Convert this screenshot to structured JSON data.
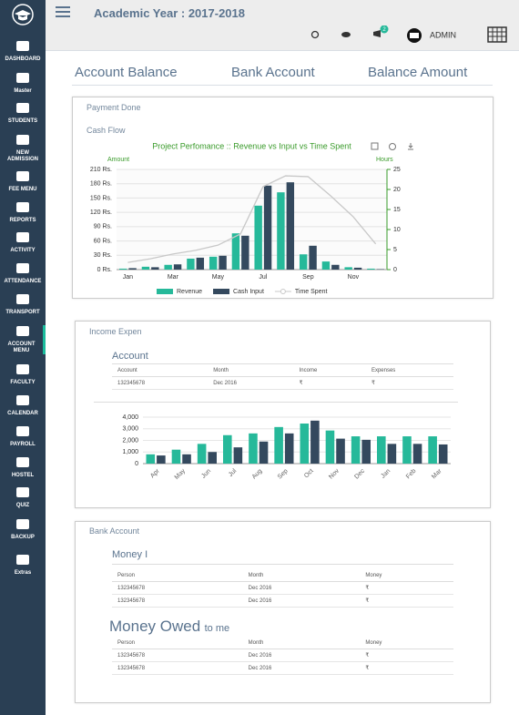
{
  "header": {
    "academic_year": "Academic Year :  2017-2018",
    "notification_count": 2,
    "user": "ADMIN"
  },
  "sidebar": [
    "DASHBOARD",
    "Master",
    "STUDENTS",
    "NEW ADMISSION",
    "FEE MENU",
    "REPORTS",
    "ACTIVITY",
    "ATTENDANCE",
    "TRANSPORT",
    "ACCOUNT MENU",
    "FACULTY",
    "CALENDAR",
    "PAYROLL",
    "HOSTEL",
    "QUIZ",
    "BACKUP",
    "Extras"
  ],
  "tabs": [
    "Account Balance",
    "Bank Account",
    "Balance Amount"
  ],
  "payment_panel": {
    "title": "Payment Done",
    "subtitle": "Cash Flow",
    "chart": {
      "type": "bar",
      "title": "Project Perfomance :: Revenue vs Input vs Time Spent",
      "y_title": "Amount",
      "y2_title": "Hours",
      "categories": [
        "Jan",
        null,
        "Mar",
        null,
        "May",
        null,
        "Jul",
        null,
        "Sep",
        null,
        "Nov",
        null
      ],
      "series": [
        {
          "name": "Revenue",
          "color": "#26b99a",
          "values": [
            2,
            6,
            10,
            23,
            27,
            76,
            134,
            162,
            32,
            17,
            5,
            2
          ]
        },
        {
          "name": "Cash Input",
          "color": "#34495e",
          "values": [
            3,
            5,
            11,
            25,
            29,
            71,
            176,
            183,
            50,
            10,
            4,
            1
          ]
        },
        {
          "name": "Time Spent",
          "color": "#c8c8c8",
          "type": "line",
          "axis": "y2",
          "values": [
            1.8,
            2.7,
            3.9,
            4.8,
            6.1,
            8.9,
            20.7,
            23.4,
            23.2,
            18.4,
            13.2,
            6.4
          ]
        }
      ],
      "ylim": [
        0,
        210
      ],
      "yticks": [
        {
          "value": 0,
          "label": "0 Rs."
        },
        {
          "value": 30,
          "label": "30 Rs."
        },
        {
          "value": 60,
          "label": "60 Rs."
        },
        {
          "value": 90,
          "label": "90 Rs."
        },
        {
          "value": 120,
          "label": "120 Rs."
        },
        {
          "value": 150,
          "label": "150 Rs."
        },
        {
          "value": 180,
          "label": "180 Rs."
        },
        {
          "value": 210,
          "label": "210 Rs."
        }
      ],
      "y2lim": [
        0,
        25
      ],
      "y2ticks": [
        0,
        5,
        10,
        15,
        20,
        25
      ],
      "grid": true
    }
  },
  "income_panel": {
    "title": "Income Expen",
    "table": {
      "title": "Account",
      "columns": [
        "Account",
        "Month",
        "Income",
        "Expenses"
      ],
      "rows": [
        [
          "132345678",
          "Dec 2016",
          "₹",
          "₹"
        ]
      ]
    },
    "chart": {
      "type": "bar",
      "categories": [
        "Apr",
        "May",
        "Jun",
        "Jul",
        "Aug",
        "Sep",
        "Oct",
        "Nov",
        "Dec",
        "Jan",
        "Feb",
        "Mar"
      ],
      "series": [
        {
          "color": "#26b99a",
          "values": [
            800,
            1200,
            1700,
            2450,
            2600,
            3150,
            3450,
            2850,
            2350,
            2350,
            2350,
            2350
          ]
        },
        {
          "color": "#34495e",
          "values": [
            700,
            800,
            1000,
            1400,
            1900,
            2600,
            3700,
            2150,
            2050,
            1700,
            1700,
            1650
          ]
        }
      ],
      "ylim": [
        0,
        4000
      ],
      "yticks": [
        0,
        {
          "value": 1000,
          "label": "1,000"
        },
        {
          "value": 2000,
          "label": "2,000"
        },
        {
          "value": 3000,
          "label": "3,000"
        },
        {
          "value": 4000,
          "label": "4,000"
        }
      ],
      "grid": true
    }
  },
  "bank_panel": {
    "title": "Bank Account",
    "money_in": {
      "title": "Money I",
      "columns": [
        "Person",
        "Month",
        "Money"
      ],
      "rows": [
        [
          "132345678",
          "Dec 2016",
          "₹"
        ],
        [
          "132345678",
          "Dec 2016",
          "₹"
        ]
      ]
    },
    "money_owed": {
      "title": "Money Owed",
      "title_suffix": "to me",
      "columns": [
        "Person",
        "Month",
        "Money"
      ],
      "rows": [
        [
          "132345678",
          "Dec 2016",
          "₹"
        ],
        [
          "132345678",
          "Dec 2016",
          "₹"
        ]
      ]
    }
  }
}
